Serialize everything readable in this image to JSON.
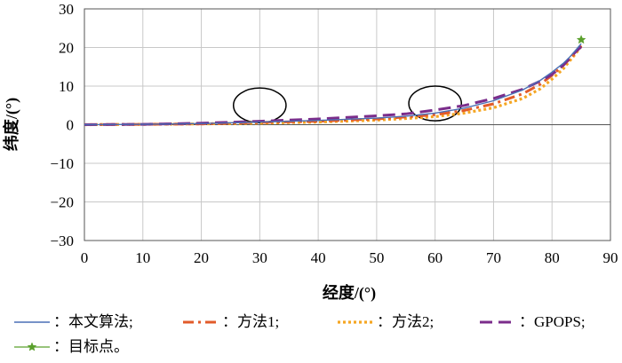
{
  "chart_data": {
    "type": "line",
    "xlabel": "经度/(°)",
    "ylabel": "纬度/(°)",
    "xlim": [
      0,
      90
    ],
    "ylim": [
      -30,
      30
    ],
    "xticks": [
      0,
      10,
      20,
      30,
      40,
      50,
      60,
      70,
      80,
      90
    ],
    "yticks": [
      30,
      20,
      10,
      0,
      -10,
      -20,
      -30
    ],
    "xtick_labels": [
      "0",
      "10",
      "20",
      "30",
      "40",
      "50",
      "60",
      "70",
      "80",
      "90"
    ],
    "ytick_labels": [
      "30",
      "20",
      "10",
      "0",
      "−10",
      "−20",
      "−30"
    ],
    "grid": true,
    "legend_position": "bottom",
    "series": [
      {
        "name": "本文算法;",
        "legend_label": "：本文算法;",
        "color": "#4a6fb5",
        "style": "solid",
        "x": [
          0,
          10,
          20,
          30,
          40,
          50,
          55,
          60,
          65,
          70,
          75,
          78,
          80,
          82,
          83,
          84,
          85
        ],
        "y": [
          0,
          0.1,
          0.3,
          0.7,
          1.1,
          1.7,
          2.2,
          3.0,
          4.3,
          6.2,
          9.0,
          11.5,
          13.6,
          16.0,
          17.5,
          19.2,
          21.0
        ]
      },
      {
        "name": "方法1;",
        "legend_label": "：方法1;",
        "color": "#e25b2a",
        "style": "dashdot",
        "x": [
          0,
          10,
          20,
          30,
          40,
          50,
          55,
          60,
          65,
          70,
          75,
          78,
          80,
          82,
          83,
          84,
          85
        ],
        "y": [
          0,
          0.1,
          0.2,
          0.6,
          0.9,
          1.5,
          2.0,
          2.6,
          3.7,
          5.4,
          8.0,
          10.5,
          12.8,
          15.5,
          17.0,
          18.6,
          20.5
        ]
      },
      {
        "name": "方法2;",
        "legend_label": "：方法2;",
        "color": "#f5a623",
        "style": "dotted",
        "x": [
          0,
          10,
          20,
          30,
          40,
          50,
          55,
          60,
          65,
          70,
          75,
          78,
          80,
          82,
          83,
          84,
          85
        ],
        "y": [
          0,
          0.1,
          0.2,
          0.4,
          0.7,
          1.2,
          1.6,
          2.1,
          3.0,
          4.4,
          6.8,
          9.3,
          11.8,
          14.6,
          16.5,
          18.3,
          20.3
        ]
      },
      {
        "name": "GPOPS;",
        "legend_label": "：GPOPS;",
        "color": "#7b2d8b",
        "style": "dashed",
        "x": [
          0,
          10,
          20,
          30,
          40,
          50,
          55,
          60,
          65,
          70,
          75,
          78,
          80,
          82,
          83,
          84,
          85
        ],
        "y": [
          0,
          0.1,
          0.4,
          0.9,
          1.5,
          2.3,
          2.8,
          3.8,
          5.0,
          6.8,
          9.2,
          11.3,
          13.0,
          15.5,
          17.2,
          18.8,
          20.2
        ]
      }
    ],
    "target": {
      "name": "目标点。",
      "legend_label": "：目标点。",
      "color": "#5aa02c",
      "x": 85,
      "y": 22
    },
    "annotations": [
      {
        "type": "ellipse",
        "cx": 30,
        "cy": 5,
        "rx": 4.5,
        "ry": 4.5
      },
      {
        "type": "ellipse",
        "cx": 60,
        "cy": 5.5,
        "rx": 4.5,
        "ry": 4.5
      }
    ]
  }
}
